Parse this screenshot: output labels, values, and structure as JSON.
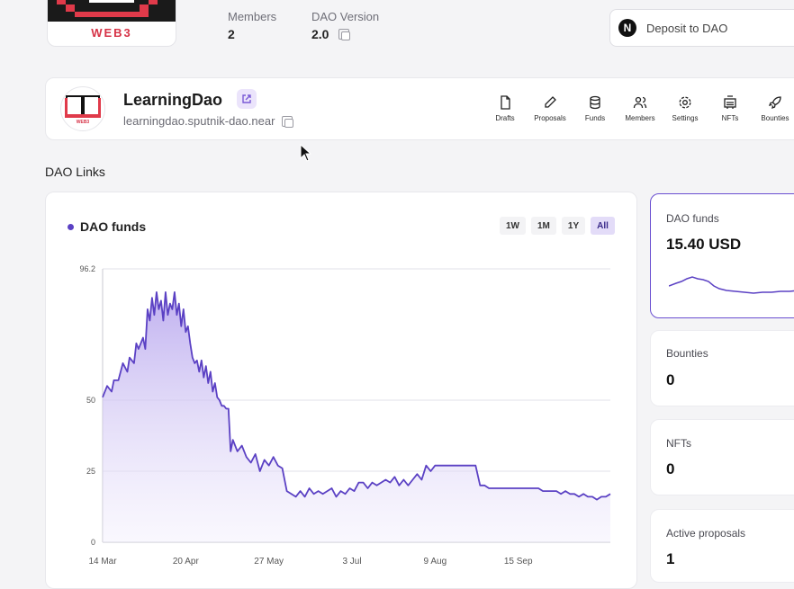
{
  "top": {
    "logo_text": "WEB3",
    "stats": [
      {
        "label": "Members",
        "value": "2"
      },
      {
        "label": "DAO Version",
        "value": "2.0"
      }
    ],
    "deposit": {
      "icon": "near-icon",
      "label": "Deposit to DAO"
    }
  },
  "dao": {
    "name": "LearningDao",
    "address": "learningdao.sputnik-dao.near",
    "logo_caption": "WEB3",
    "nav": [
      {
        "label": "Drafts",
        "icon": "drafts-icon"
      },
      {
        "label": "Proposals",
        "icon": "proposals-icon"
      },
      {
        "label": "Funds",
        "icon": "funds-icon"
      },
      {
        "label": "Members",
        "icon": "members-icon"
      },
      {
        "label": "Settings",
        "icon": "settings-icon"
      },
      {
        "label": "NFTs",
        "icon": "nfts-icon"
      },
      {
        "label": "Bounties",
        "icon": "bounties-icon"
      }
    ]
  },
  "links_title": "DAO Links",
  "chart_card": {
    "title": "DAO funds",
    "ranges": [
      "1W",
      "1M",
      "1Y",
      "All"
    ],
    "active_range": "All"
  },
  "side_cards": [
    {
      "label": "DAO funds",
      "value": "15.40 USD"
    },
    {
      "label": "Bounties",
      "value": "0"
    },
    {
      "label": "NFTs",
      "value": "0"
    },
    {
      "label": "Active proposals",
      "value": "1"
    }
  ],
  "colors": {
    "accent": "#5b41c4",
    "fill": "#d9d0f5"
  },
  "chart_data": {
    "type": "area",
    "title": "DAO funds",
    "x_tick_labels": [
      "14 Mar",
      "20 Apr",
      "27 May",
      "3 Jul",
      "9 Aug",
      "15 Sep"
    ],
    "x_tick_days": [
      0,
      37,
      74,
      111,
      148,
      185
    ],
    "y_tick_labels": [
      "0",
      "25",
      "50",
      "96.2"
    ],
    "y_tick_values": [
      0,
      25,
      50,
      96.2
    ],
    "ylim": [
      0,
      96.2
    ],
    "xlim": [
      0,
      226
    ],
    "series": [
      {
        "name": "DAO funds",
        "x": [
          0,
          2,
          4,
          5,
          7,
          9,
          11,
          12,
          14,
          15,
          16,
          18,
          19,
          20,
          21,
          22,
          23,
          24,
          25,
          26,
          27,
          28,
          29,
          30,
          31,
          32,
          33,
          34,
          35,
          36,
          37,
          38,
          39,
          40,
          41,
          42,
          43,
          44,
          45,
          46,
          47,
          48,
          49,
          50,
          51,
          52,
          53,
          54,
          55,
          56,
          57,
          58,
          60,
          62,
          64,
          66,
          68,
          70,
          72,
          74,
          76,
          78,
          80,
          82,
          84,
          86,
          88,
          90,
          92,
          94,
          96,
          98,
          100,
          102,
          104,
          106,
          108,
          110,
          112,
          114,
          116,
          118,
          120,
          122,
          124,
          126,
          128,
          130,
          132,
          134,
          136,
          138,
          140,
          142,
          144,
          146,
          148,
          150,
          152,
          154,
          156,
          158,
          160,
          162,
          164,
          166,
          168,
          170,
          172,
          174,
          176,
          178,
          180,
          182,
          184,
          186,
          188,
          190,
          192,
          194,
          196,
          198,
          200,
          202,
          204,
          206,
          208,
          210,
          212,
          214,
          216,
          218,
          220,
          222,
          224,
          226
        ],
        "values": [
          51,
          55,
          53,
          57,
          57,
          63,
          60,
          65,
          63,
          70,
          68,
          72,
          68,
          82,
          78,
          86,
          80,
          88,
          82,
          85,
          78,
          88,
          80,
          84,
          82,
          88,
          80,
          84,
          76,
          82,
          74,
          76,
          70,
          65,
          63,
          64,
          60,
          64,
          58,
          62,
          56,
          60,
          53,
          56,
          51,
          50,
          48,
          48,
          47,
          47,
          32,
          36,
          32,
          34,
          30,
          28,
          31,
          25,
          29,
          27,
          30,
          27,
          26,
          18,
          17,
          16,
          18,
          16,
          19,
          17,
          18,
          17,
          18,
          19,
          16,
          18,
          17,
          19,
          18,
          21,
          21,
          19,
          21,
          20,
          21,
          22,
          21,
          23,
          20,
          22,
          20,
          22,
          24,
          22,
          27,
          25,
          27,
          27,
          27,
          27,
          27,
          27,
          27,
          27,
          27,
          27,
          20,
          20,
          19,
          19,
          19,
          19,
          19,
          19,
          19,
          19,
          19,
          19,
          19,
          19,
          18,
          18,
          18,
          18,
          17,
          18,
          17,
          17,
          16,
          17,
          16,
          16,
          15,
          16,
          16,
          17
        ]
      }
    ]
  }
}
